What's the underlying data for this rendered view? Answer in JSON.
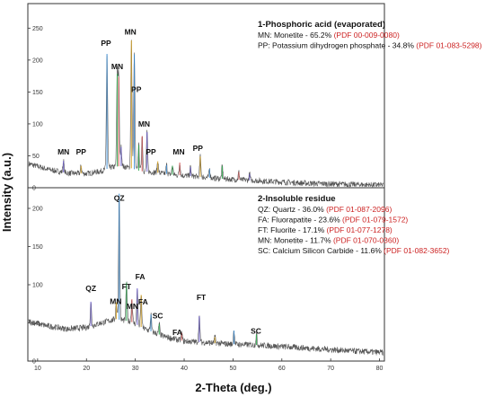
{
  "chart_data": {
    "type": "line",
    "xlabel": "2-Theta (deg.)",
    "ylabel": "Intensity (a.u.)",
    "xlim": [
      8,
      81
    ],
    "x_ticks": [
      "10",
      "20",
      "30",
      "40",
      "50",
      "60",
      "70",
      "80"
    ],
    "panels": [
      {
        "title": "1-Phosphoric acid (evaporated)",
        "ylim": [
          0,
          280
        ],
        "y_ticks": [
          "0",
          "50",
          "100",
          "150",
          "200",
          "250"
        ],
        "legend": [
          {
            "text": "MN: Monetite - 65.2% ",
            "ref": "(PDF 00-009-0080)"
          },
          {
            "text": "PP: Potassium dihydrogen phosphate - 34.8% ",
            "ref": "(PDF 01-083-5298)"
          }
        ],
        "baseline": [
          [
            8,
            38
          ],
          [
            12,
            29
          ],
          [
            16,
            23
          ],
          [
            20,
            22
          ],
          [
            23,
            26
          ],
          [
            25,
            32
          ],
          [
            27,
            34
          ],
          [
            29,
            31
          ],
          [
            31,
            26
          ],
          [
            34,
            24
          ],
          [
            38,
            20
          ],
          [
            42,
            18
          ],
          [
            46,
            15
          ],
          [
            50,
            13
          ],
          [
            55,
            11
          ],
          [
            60,
            9
          ],
          [
            65,
            7
          ],
          [
            70,
            6
          ],
          [
            75,
            5
          ],
          [
            81,
            4
          ]
        ],
        "peaks": [
          [
            15.3,
            18
          ],
          [
            18.9,
            12
          ],
          [
            24.2,
            180
          ],
          [
            26.3,
            145
          ],
          [
            26.6,
            140
          ],
          [
            27.1,
            30
          ],
          [
            29.2,
            200
          ],
          [
            29.8,
            180
          ],
          [
            30.7,
            40
          ],
          [
            31.4,
            55
          ],
          [
            32.4,
            62
          ],
          [
            34.6,
            18
          ],
          [
            36.4,
            14
          ],
          [
            37.6,
            14
          ],
          [
            39.1,
            20
          ],
          [
            41.3,
            14
          ],
          [
            43.3,
            32
          ],
          [
            45.2,
            14
          ],
          [
            47.8,
            20
          ],
          [
            51.2,
            12
          ],
          [
            53.4,
            10
          ]
        ],
        "annotations": [
          {
            "label": "MN",
            "x": 15.3,
            "y": 52
          },
          {
            "label": "PP",
            "x": 18.9,
            "y": 52
          },
          {
            "label": "PP",
            "x": 24.0,
            "y": 222
          },
          {
            "label": "MN",
            "x": 26.3,
            "y": 186
          },
          {
            "label": "MN",
            "x": 29.0,
            "y": 240
          },
          {
            "label": "PP",
            "x": 30.2,
            "y": 150
          },
          {
            "label": "MN",
            "x": 31.8,
            "y": 96
          },
          {
            "label": "PP",
            "x": 33.2,
            "y": 52
          },
          {
            "label": "MN",
            "x": 38.9,
            "y": 52
          },
          {
            "label": "PP",
            "x": 42.8,
            "y": 58
          }
        ]
      },
      {
        "title": "2-Insoluble residue",
        "ylim": [
          0,
          220
        ],
        "y_ticks": [
          "0",
          "50",
          "100",
          "150",
          "200"
        ],
        "legend": [
          {
            "text": "QZ: Quartz - 36.0% ",
            "ref": "(PDF 01-087-2096)"
          },
          {
            "text": "FA: Fluorapatite - 23.6% ",
            "ref": "(PDF 01-079-1572)"
          },
          {
            "text": "FT: Fluorite - 17.1% ",
            "ref": "(PDF 01-077-1278)"
          },
          {
            "text": "MN: Monetite - 11.7% ",
            "ref": "(PDF 01-070-0360)"
          },
          {
            "text": "SC: Calcium Silicon Carbide - 11.6% ",
            "ref": "(PDF 01-082-3652)"
          }
        ],
        "baseline": [
          [
            8,
            52
          ],
          [
            12,
            46
          ],
          [
            16,
            42
          ],
          [
            20,
            44
          ],
          [
            23,
            50
          ],
          [
            26,
            55
          ],
          [
            29,
            52
          ],
          [
            32,
            42
          ],
          [
            36,
            32
          ],
          [
            40,
            26
          ],
          [
            45,
            24
          ],
          [
            50,
            22
          ],
          [
            55,
            21
          ],
          [
            60,
            19
          ],
          [
            65,
            17
          ],
          [
            70,
            15
          ],
          [
            75,
            13
          ],
          [
            81,
            11
          ]
        ],
        "peaks": [
          [
            20.9,
            32
          ],
          [
            26.1,
            22
          ],
          [
            26.7,
            165
          ],
          [
            28.2,
            50
          ],
          [
            29.3,
            30
          ],
          [
            30.4,
            48
          ],
          [
            31.2,
            42
          ],
          [
            33.2,
            22
          ],
          [
            34.9,
            14
          ],
          [
            39.5,
            10
          ],
          [
            43.1,
            34
          ],
          [
            46.3,
            8
          ],
          [
            50.2,
            18
          ],
          [
            54.8,
            14
          ]
        ],
        "annotations": [
          {
            "label": "QZ",
            "x": 20.9,
            "y": 92
          },
          {
            "label": "MN",
            "x": 26.0,
            "y": 75
          },
          {
            "label": "QZ",
            "x": 26.7,
            "y": 210
          },
          {
            "label": "FT",
            "x": 28.2,
            "y": 94
          },
          {
            "label": "MN",
            "x": 29.4,
            "y": 68
          },
          {
            "label": "FA",
            "x": 31.0,
            "y": 107
          },
          {
            "label": "FA",
            "x": 31.6,
            "y": 74
          },
          {
            "label": "SC",
            "x": 34.6,
            "y": 56
          },
          {
            "label": "FA",
            "x": 38.6,
            "y": 34
          },
          {
            "label": "FT",
            "x": 43.5,
            "y": 80
          },
          {
            "label": "SC",
            "x": 54.7,
            "y": 36
          }
        ]
      }
    ]
  },
  "colors": {
    "axis": "#333333",
    "trace": "#555555",
    "ref": "#cc2222",
    "peak_palette": [
      "#6a5acd",
      "#d4a020",
      "#3a8ad0",
      "#2aa84a",
      "#d05050"
    ]
  }
}
